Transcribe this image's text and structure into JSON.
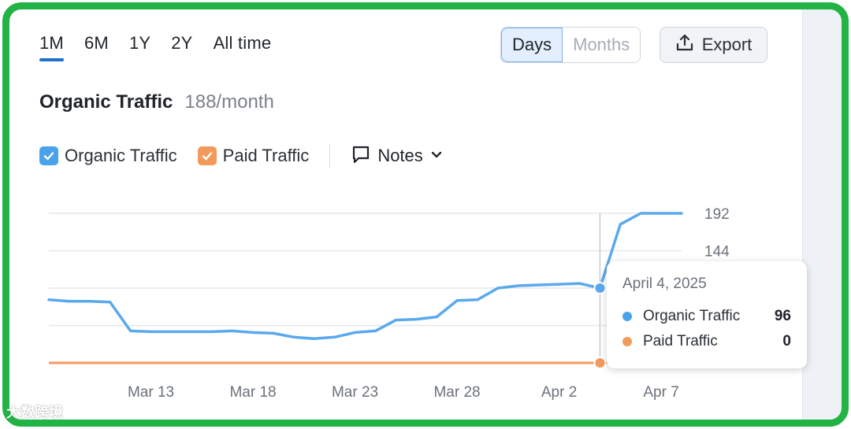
{
  "tabs": [
    "1M",
    "6M",
    "1Y",
    "2Y",
    "All time"
  ],
  "active_tab": 0,
  "toggle": {
    "days": "Days",
    "months": "Months"
  },
  "export_label": "Export",
  "heading": {
    "title": "Organic Traffic",
    "subtitle": "188/month"
  },
  "legend": {
    "organic": "Organic Traffic",
    "paid": "Paid Traffic",
    "notes": "Notes"
  },
  "colors": {
    "organic": "#5aa9ec",
    "paid": "#f29a5b",
    "accent": "#1f6fd1",
    "frame": "#22b345"
  },
  "tooltip": {
    "date": "April 4, 2025",
    "rows": [
      {
        "name": "Organic Traffic",
        "value": "96"
      },
      {
        "name": "Paid Traffic",
        "value": "0"
      }
    ]
  },
  "watermark": "大数跨境",
  "chart_data": {
    "type": "line",
    "title": "",
    "xlabel": "",
    "ylabel": "",
    "x_tick_labels": [
      "Mar 13",
      "Mar 18",
      "Mar 23",
      "Mar 28",
      "Apr 2",
      "Apr 7"
    ],
    "y_tick_labels": [
      "192",
      "144"
    ],
    "ylim": [
      0,
      192
    ],
    "grid": true,
    "legend": "top-left",
    "x": [
      "Mar 8",
      "Mar 9",
      "Mar 10",
      "Mar 11",
      "Mar 12",
      "Mar 13",
      "Mar 14",
      "Mar 15",
      "Mar 16",
      "Mar 17",
      "Mar 18",
      "Mar 19",
      "Mar 20",
      "Mar 21",
      "Mar 22",
      "Mar 23",
      "Mar 24",
      "Mar 25",
      "Mar 26",
      "Mar 27",
      "Mar 28",
      "Mar 29",
      "Mar 30",
      "Mar 31",
      "Apr 1",
      "Apr 2",
      "Apr 3",
      "Apr 4",
      "Apr 5",
      "Apr 6",
      "Apr 7",
      "Apr 8"
    ],
    "series": [
      {
        "name": "Organic Traffic",
        "values": [
          81,
          79,
          79,
          78,
          41,
          40,
          40,
          40,
          40,
          41,
          39,
          38,
          33,
          31,
          33,
          39,
          41,
          55,
          56,
          59,
          80,
          81,
          96,
          99,
          100,
          101,
          102,
          96,
          178,
          192,
          192,
          192
        ]
      },
      {
        "name": "Paid Traffic",
        "values": [
          0,
          0,
          0,
          0,
          0,
          0,
          0,
          0,
          0,
          0,
          0,
          0,
          0,
          0,
          0,
          0,
          0,
          0,
          0,
          0,
          0,
          0,
          0,
          0,
          0,
          0,
          0,
          0,
          0,
          0,
          0,
          0
        ]
      }
    ],
    "highlight": {
      "x": "Apr 4",
      "organic": 96,
      "paid": 0
    }
  }
}
